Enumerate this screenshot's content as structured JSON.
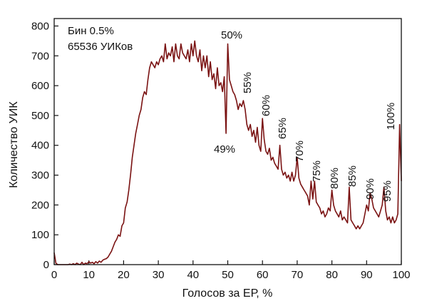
{
  "chart_data": {
    "type": "line",
    "x_label": "Голосов за ЕР, %",
    "y_label": "Количество УИК",
    "annotations": [
      "Бин 0.5%",
      "65536 УИКов",
      "50%",
      "49%",
      "55%",
      "60%",
      "65%",
      "70%",
      "75%",
      "80%",
      "85%",
      "90%",
      "95%",
      "100%"
    ],
    "xlim": [
      0,
      100
    ],
    "ylim": [
      0,
      825
    ],
    "xticks": [
      0,
      10,
      20,
      30,
      40,
      50,
      60,
      70,
      80,
      90,
      100
    ],
    "yticks": [
      0,
      100,
      200,
      300,
      400,
      500,
      600,
      700,
      800
    ],
    "x": [
      0,
      0.5,
      1,
      1.5,
      2,
      2.5,
      3,
      3.5,
      4,
      4.5,
      5,
      5.5,
      6,
      6.5,
      7,
      7.5,
      8,
      8.5,
      9,
      9.5,
      10,
      10.5,
      11,
      11.5,
      12,
      12.5,
      13,
      13.5,
      14,
      14.5,
      15,
      15.5,
      16,
      16.5,
      17,
      17.5,
      18,
      18.5,
      19,
      19.5,
      20,
      20.5,
      21,
      21.5,
      22,
      22.5,
      23,
      23.5,
      24,
      24.5,
      25,
      25.5,
      26,
      26.5,
      27,
      27.5,
      28,
      28.5,
      29,
      29.5,
      30,
      30.5,
      31,
      31.5,
      32,
      32.5,
      33,
      33.5,
      34,
      34.5,
      35,
      35.5,
      36,
      36.5,
      37,
      37.5,
      38,
      38.5,
      39,
      39.5,
      40,
      40.5,
      41,
      41.5,
      42,
      42.5,
      43,
      43.5,
      44,
      44.5,
      45,
      45.5,
      46,
      46.5,
      47,
      47.5,
      48,
      48.5,
      49,
      49.5,
      50,
      50.5,
      51,
      51.5,
      52,
      52.5,
      53,
      53.5,
      54,
      54.5,
      55,
      55.5,
      56,
      56.5,
      57,
      57.5,
      58,
      58.5,
      59,
      59.5,
      60,
      60.5,
      61,
      61.5,
      62,
      62.5,
      63,
      63.5,
      64,
      64.5,
      65,
      65.5,
      66,
      66.5,
      67,
      67.5,
      68,
      68.5,
      69,
      69.5,
      70,
      70.5,
      71,
      71.5,
      72,
      72.5,
      73,
      73.5,
      74,
      74.5,
      75,
      75.5,
      76,
      76.5,
      77,
      77.5,
      78,
      78.5,
      79,
      79.5,
      80,
      80.5,
      81,
      81.5,
      82,
      82.5,
      83,
      83.5,
      84,
      84.5,
      85,
      85.5,
      86,
      86.5,
      87,
      87.5,
      88,
      88.5,
      89,
      89.5,
      90,
      90.5,
      91,
      91.5,
      92,
      92.5,
      93,
      93.5,
      94,
      94.5,
      95,
      95.5,
      96,
      96.5,
      97,
      97.5,
      98,
      98.5,
      99,
      99.5,
      100
    ],
    "series": [
      {
        "color": "#7a1212",
        "values": [
          40,
          5,
          0,
          0,
          0,
          0,
          0,
          0,
          0,
          2,
          0,
          3,
          0,
          5,
          2,
          0,
          8,
          0,
          5,
          3,
          10,
          5,
          8,
          3,
          10,
          5,
          12,
          8,
          15,
          18,
          20,
          25,
          35,
          45,
          60,
          75,
          85,
          100,
          95,
          130,
          140,
          190,
          210,
          250,
          300,
          360,
          400,
          440,
          470,
          500,
          520,
          560,
          580,
          570,
          620,
          660,
          680,
          670,
          660,
          680,
          670,
          690,
          700,
          680,
          740,
          690,
          710,
          700,
          730,
          680,
          740,
          700,
          690,
          740,
          710,
          700,
          690,
          720,
          680,
          740,
          700,
          750,
          700,
          680,
          720,
          650,
          700,
          660,
          700,
          630,
          680,
          620,
          640,
          590,
          660,
          600,
          610,
          580,
          630,
          440,
          740,
          620,
          600,
          580,
          570,
          550,
          520,
          540,
          530,
          550,
          520,
          470,
          450,
          470,
          430,
          450,
          410,
          460,
          400,
          380,
          490,
          420,
          380,
          370,
          390,
          350,
          360,
          340,
          330,
          320,
          400,
          320,
          300,
          310,
          290,
          300,
          280,
          310,
          280,
          300,
          360,
          290,
          270,
          260,
          250,
          240,
          230,
          200,
          280,
          220,
          280,
          210,
          200,
          190,
          170,
          180,
          160,
          170,
          190,
          180,
          250,
          200,
          180,
          170,
          160,
          180,
          150,
          160,
          150,
          140,
          260,
          150,
          140,
          130,
          120,
          130,
          120,
          130,
          140,
          170,
          200,
          180,
          240,
          220,
          190,
          180,
          170,
          160,
          180,
          200,
          260,
          180,
          150,
          160,
          140,
          160,
          140,
          150,
          170,
          470,
          280
        ]
      }
    ]
  }
}
